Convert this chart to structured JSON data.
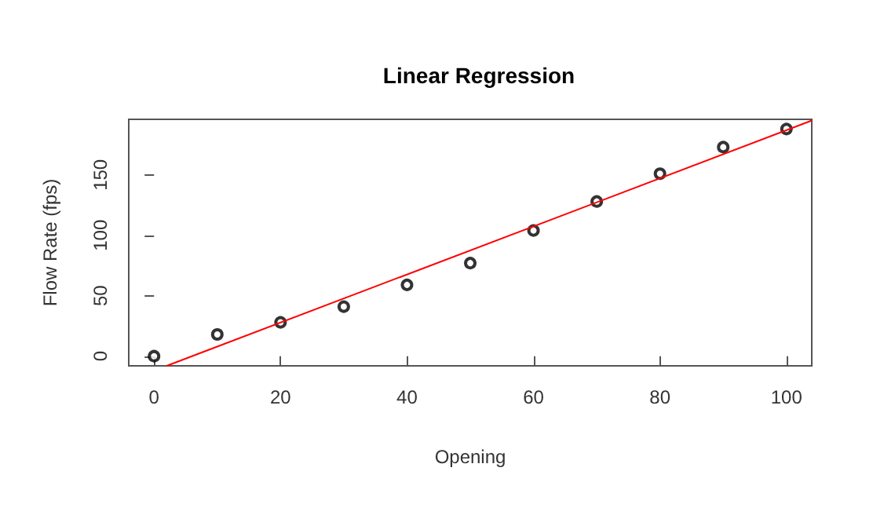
{
  "chart_data": {
    "type": "scatter",
    "title": "Linear Regression",
    "xlabel": "Opening",
    "ylabel": "Flow Rate (fps)",
    "x": [
      0,
      10,
      20,
      30,
      40,
      50,
      60,
      70,
      80,
      90,
      100
    ],
    "series": [
      {
        "color": "#000000",
        "marker": "circle",
        "values": [
          0,
          18,
          28,
          41,
          59,
          77,
          104,
          128,
          151,
          173,
          188
        ]
      },
      {
        "type": "line",
        "color": "#ff0000",
        "x": [
          2,
          104
        ],
        "values": [
          -8,
          195
        ]
      }
    ],
    "xlim": [
      -4,
      104
    ],
    "xticks": [
      0,
      20,
      40,
      60,
      80,
      100
    ],
    "ylim": [
      -8,
      196
    ],
    "yticks": [
      0,
      50,
      100,
      150
    ],
    "grid": false
  }
}
